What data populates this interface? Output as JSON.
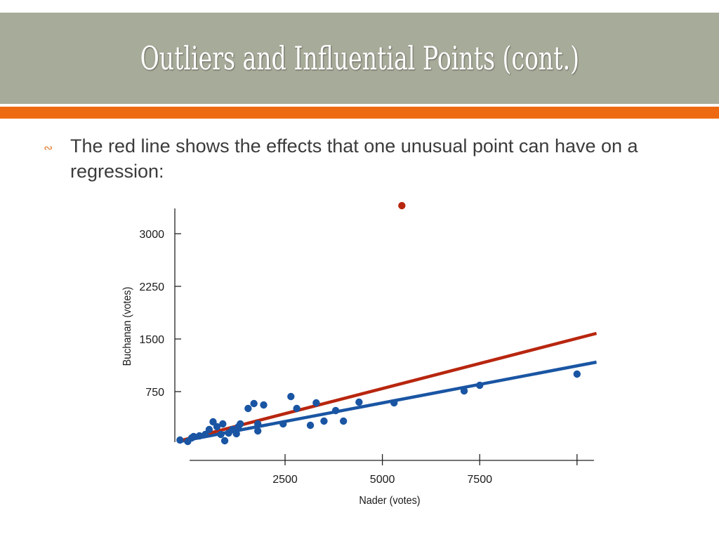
{
  "slide": {
    "title": "Outliers and Influential Points (cont.)",
    "bullet_glyph": "∾",
    "bullet_text": "The red line shows the effects that one unusual point can have on a regression:"
  },
  "colors": {
    "title_bar": "#a7ab99",
    "accent": "#ee6a12",
    "points": "#1a55a3",
    "outlier": "#b8260f",
    "fit_all": "#b8260f",
    "fit_without_outlier": "#1a55a3"
  },
  "chart_data": {
    "type": "scatter",
    "xlabel": "Nader (votes)",
    "ylabel": "Buchanan (votes)",
    "xticks": [
      2500,
      5000,
      7500
    ],
    "xtick_labels": [
      "2500",
      "5000",
      "7500"
    ],
    "extra_xticks": [
      10000
    ],
    "yticks": [
      750,
      1500,
      2250,
      3000
    ],
    "ytick_labels": [
      "750",
      "1500",
      "2250",
      "3000"
    ],
    "xlim": [
      0,
      10500
    ],
    "ylim": [
      0,
      3400
    ],
    "grid": false,
    "series": [
      {
        "points": [
          [
            -200,
            60
          ],
          [
            0,
            40
          ],
          [
            100,
            90
          ],
          [
            150,
            110
          ],
          [
            300,
            120
          ],
          [
            450,
            140
          ],
          [
            550,
            210
          ],
          [
            650,
            320
          ],
          [
            750,
            250
          ],
          [
            850,
            140
          ],
          [
            900,
            290
          ],
          [
            950,
            50
          ],
          [
            1050,
            160
          ],
          [
            1150,
            210
          ],
          [
            1250,
            150
          ],
          [
            1300,
            250
          ],
          [
            1350,
            290
          ],
          [
            1550,
            510
          ],
          [
            1700,
            580
          ],
          [
            1800,
            290
          ],
          [
            1800,
            190
          ],
          [
            1950,
            560
          ],
          [
            2450,
            290
          ],
          [
            2650,
            680
          ],
          [
            2800,
            510
          ],
          [
            3150,
            270
          ],
          [
            3300,
            590
          ],
          [
            3500,
            330
          ],
          [
            3800,
            480
          ],
          [
            4000,
            330
          ],
          [
            4400,
            600
          ],
          [
            5300,
            590
          ],
          [
            7100,
            760
          ],
          [
            7500,
            840
          ],
          [
            10000,
            1000
          ]
        ]
      }
    ],
    "outlier": [
      5500,
      3400
    ],
    "fit_all": {
      "start": [
        -200,
        50
      ],
      "end": [
        10500,
        1580
      ]
    },
    "fit_without_outlier": {
      "start": [
        -200,
        40
      ],
      "end": [
        10500,
        1170
      ]
    }
  }
}
